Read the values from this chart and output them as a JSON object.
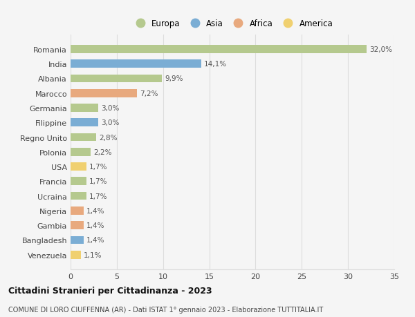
{
  "categories": [
    "Romania",
    "India",
    "Albania",
    "Marocco",
    "Germania",
    "Filippine",
    "Regno Unito",
    "Polonia",
    "USA",
    "Francia",
    "Ucraina",
    "Nigeria",
    "Gambia",
    "Bangladesh",
    "Venezuela"
  ],
  "values": [
    32.0,
    14.1,
    9.9,
    7.2,
    3.0,
    3.0,
    2.8,
    2.2,
    1.7,
    1.7,
    1.7,
    1.4,
    1.4,
    1.4,
    1.1
  ],
  "labels": [
    "32,0%",
    "14,1%",
    "9,9%",
    "7,2%",
    "3,0%",
    "3,0%",
    "2,8%",
    "2,2%",
    "1,7%",
    "1,7%",
    "1,7%",
    "1,4%",
    "1,4%",
    "1,4%",
    "1,1%"
  ],
  "colors": [
    "#b5c98e",
    "#7aadd4",
    "#b5c98e",
    "#e8a97e",
    "#b5c98e",
    "#7aadd4",
    "#b5c98e",
    "#b5c98e",
    "#f0d070",
    "#b5c98e",
    "#b5c98e",
    "#e8a97e",
    "#e8a97e",
    "#7aadd4",
    "#f0d070"
  ],
  "legend_labels": [
    "Europa",
    "Asia",
    "Africa",
    "America"
  ],
  "legend_colors": [
    "#b5c98e",
    "#7aadd4",
    "#e8a97e",
    "#f0d070"
  ],
  "xlim": [
    0,
    35
  ],
  "xticks": [
    0,
    5,
    10,
    15,
    20,
    25,
    30,
    35
  ],
  "title": "Cittadini Stranieri per Cittadinanza - 2023",
  "subtitle": "COMUNE DI LORO CIUFFENNA (AR) - Dati ISTAT 1° gennaio 2023 - Elaborazione TUTTITALIA.IT",
  "bg_color": "#f5f5f5",
  "grid_color": "#dddddd",
  "bar_height": 0.55,
  "label_fontsize": 7.5,
  "ytick_fontsize": 8.0,
  "xtick_fontsize": 8.0,
  "legend_fontsize": 8.5,
  "title_fontsize": 9.0,
  "subtitle_fontsize": 7.0
}
